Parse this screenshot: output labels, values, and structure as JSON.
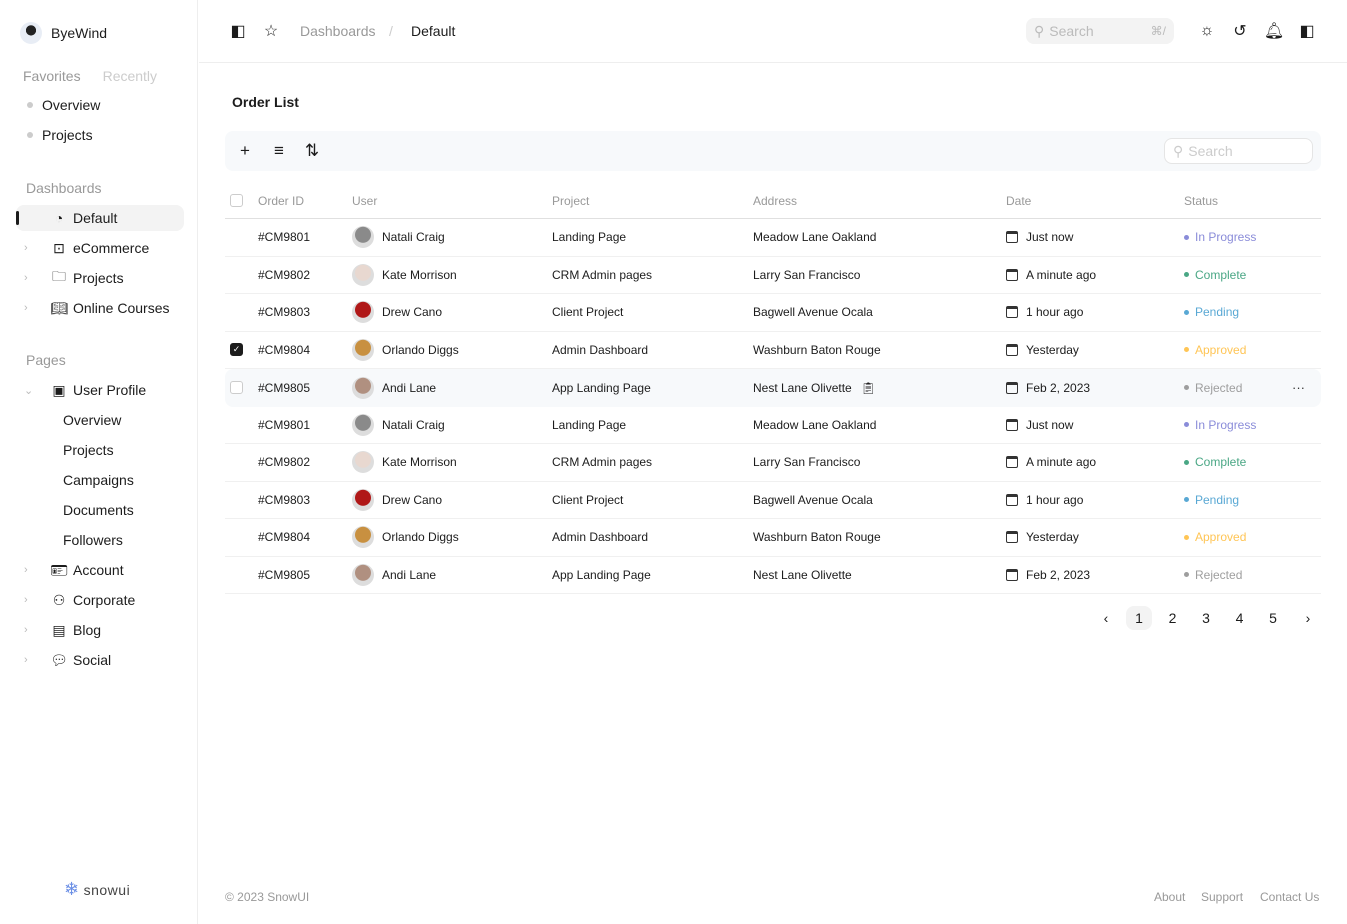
{
  "sidebar": {
    "user": "ByeWind",
    "tabs": [
      "Favorites",
      "Recently"
    ],
    "favorites": [
      "Overview",
      "Projects"
    ],
    "dashboards_title": "Dashboards",
    "dashboards": [
      {
        "label": "Default",
        "icon": "pie-chart-icon",
        "active": true
      },
      {
        "label": "eCommerce",
        "icon": "shopping-bag-icon"
      },
      {
        "label": "Projects",
        "icon": "folder-icon"
      },
      {
        "label": "Online Courses",
        "icon": "book-open-icon"
      }
    ],
    "pages_title": "Pages",
    "user_profile": "User Profile",
    "profile_items": [
      "Overview",
      "Projects",
      "Campaigns",
      "Documents",
      "Followers"
    ],
    "pages": [
      {
        "label": "Account",
        "icon": "id-card-icon"
      },
      {
        "label": "Corporate",
        "icon": "users-icon"
      },
      {
        "label": "Blog",
        "icon": "notebook-icon"
      },
      {
        "label": "Social",
        "icon": "chat-icon"
      }
    ],
    "logo": "snowui"
  },
  "header": {
    "breadcrumb": [
      "Dashboards",
      "Default"
    ],
    "search_placeholder": "Search",
    "shortcut": "⌘/"
  },
  "main": {
    "title": "Order List",
    "search_placeholder": "Search",
    "columns": [
      "Order ID",
      "User",
      "Project",
      "Address",
      "Date",
      "Status"
    ],
    "rows": [
      {
        "id": "#CM9801",
        "user": "Natali Craig",
        "project": "Landing Page",
        "address": "Meadow Lane Oakland",
        "date": "Just now",
        "status": "In Progress"
      },
      {
        "id": "#CM9802",
        "user": "Kate Morrison",
        "project": "CRM Admin pages",
        "address": "Larry San Francisco",
        "date": "A minute ago",
        "status": "Complete"
      },
      {
        "id": "#CM9803",
        "user": "Drew Cano",
        "project": "Client Project",
        "address": "Bagwell Avenue Ocala",
        "date": "1 hour ago",
        "status": "Pending"
      },
      {
        "id": "#CM9804",
        "user": "Orlando Diggs",
        "project": "Admin Dashboard",
        "address": "Washburn Baton Rouge",
        "date": "Yesterday",
        "status": "Approved",
        "checked": true
      },
      {
        "id": "#CM9805",
        "user": "Andi Lane",
        "project": "App Landing Page",
        "address": "Nest Lane Olivette",
        "date": "Feb 2, 2023",
        "status": "Rejected",
        "hovered": true
      },
      {
        "id": "#CM9801",
        "user": "Natali Craig",
        "project": "Landing Page",
        "address": "Meadow Lane Oakland",
        "date": "Just now",
        "status": "In Progress"
      },
      {
        "id": "#CM9802",
        "user": "Kate Morrison",
        "project": "CRM Admin pages",
        "address": "Larry San Francisco",
        "date": "A minute ago",
        "status": "Complete"
      },
      {
        "id": "#CM9803",
        "user": "Drew Cano",
        "project": "Client Project",
        "address": "Bagwell Avenue Ocala",
        "date": "1 hour ago",
        "status": "Pending"
      },
      {
        "id": "#CM9804",
        "user": "Orlando Diggs",
        "project": "Admin Dashboard",
        "address": "Washburn Baton Rouge",
        "date": "Yesterday",
        "status": "Approved"
      },
      {
        "id": "#CM9805",
        "user": "Andi Lane",
        "project": "App Landing Page",
        "address": "Nest Lane Olivette",
        "date": "Feb 2, 2023",
        "status": "Rejected"
      }
    ],
    "status_colors": {
      "In Progress": "#8A8CD9",
      "Complete": "#4AA785",
      "Pending": "#59A8D4",
      "Approved": "#FFC555",
      "Rejected": "#9e9e9e"
    },
    "avatar_colors": {
      "Natali Craig": "#8a8a8a",
      "Kate Morrison": "#e8d8d0",
      "Drew Cano": "#b01818",
      "Orlando Diggs": "#c89040",
      "Andi Lane": "#b09080"
    },
    "pagination": {
      "pages": [
        "1",
        "2",
        "3",
        "4",
        "5"
      ],
      "current": "1"
    }
  },
  "footer": {
    "copyright": "© 2023 SnowUI",
    "links": [
      "About",
      "Support",
      "Contact Us"
    ]
  }
}
